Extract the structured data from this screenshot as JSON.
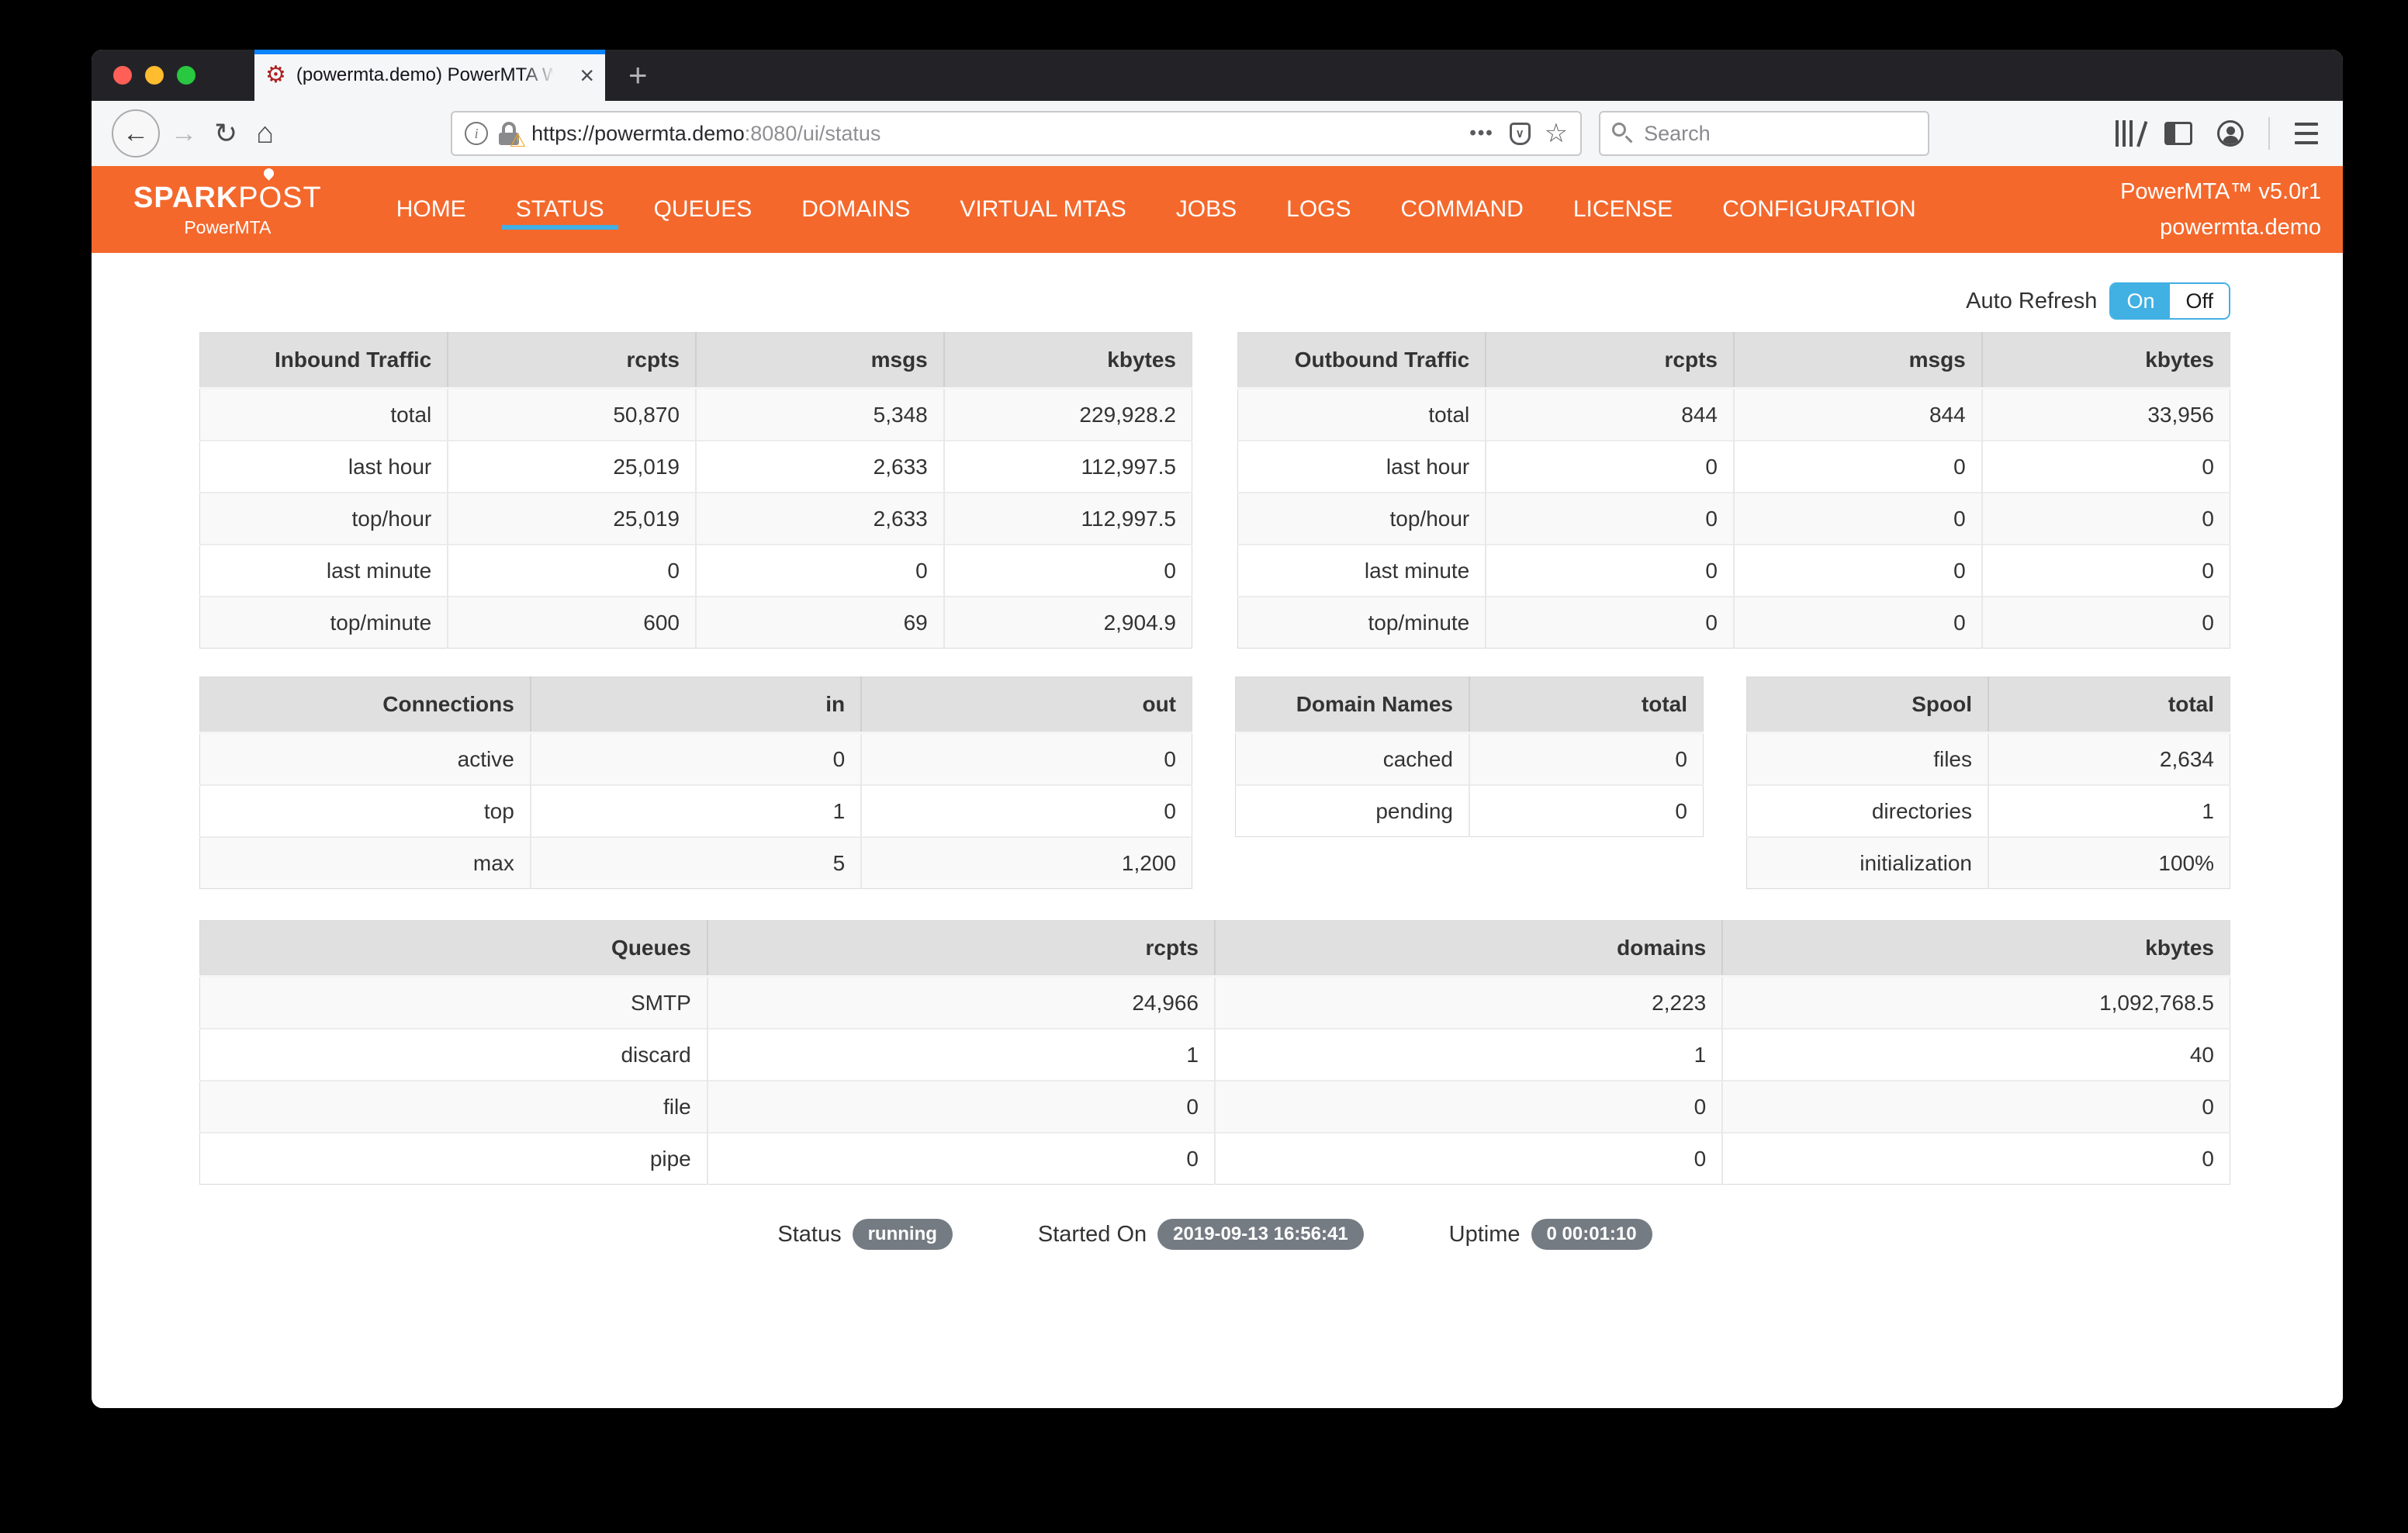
{
  "browser": {
    "tab": {
      "title": "(powermta.demo) PowerMTA W",
      "close_glyph": "×",
      "new_tab_glyph": "+"
    },
    "toolbar": {
      "back_glyph": "←",
      "forward_glyph": "→",
      "reload_glyph": "↻",
      "home_glyph": "⌂",
      "url_scheme_host": "https://powermta.demo",
      "url_rest": ":8080/ui/status",
      "page_actions_glyph": "•••",
      "pocket_glyph": "∨",
      "star_glyph": "☆",
      "lock_warn_glyph": "⚠",
      "info_glyph": "i",
      "search_placeholder": "Search"
    }
  },
  "nav": {
    "brand_prefix": "SPARK",
    "brand_mid": "P",
    "brand_o": "O",
    "brand_suffix": "ST",
    "brand_sub": "PowerMTA",
    "items": [
      {
        "label": "HOME",
        "active": false
      },
      {
        "label": "STATUS",
        "active": true
      },
      {
        "label": "QUEUES",
        "active": false
      },
      {
        "label": "DOMAINS",
        "active": false
      },
      {
        "label": "VIRTUAL MTAS",
        "active": false
      },
      {
        "label": "JOBS",
        "active": false
      },
      {
        "label": "LOGS",
        "active": false
      },
      {
        "label": "COMMAND",
        "active": false
      },
      {
        "label": "LICENSE",
        "active": false
      },
      {
        "label": "CONFIGURATION",
        "active": false
      }
    ],
    "version": "PowerMTA™ v5.0r1",
    "host": "powermta.demo"
  },
  "auto_refresh": {
    "label": "Auto Refresh",
    "on_label": "On",
    "off_label": "Off",
    "state": "On"
  },
  "tables": {
    "inbound": {
      "title": "Inbound Traffic",
      "columns": [
        "rcpts",
        "msgs",
        "kbytes"
      ],
      "rows": [
        [
          "total",
          "50,870",
          "5,348",
          "229,928.2"
        ],
        [
          "last hour",
          "25,019",
          "2,633",
          "112,997.5"
        ],
        [
          "top/hour",
          "25,019",
          "2,633",
          "112,997.5"
        ],
        [
          "last minute",
          "0",
          "0",
          "0"
        ],
        [
          "top/minute",
          "600",
          "69",
          "2,904.9"
        ]
      ]
    },
    "outbound": {
      "title": "Outbound Traffic",
      "columns": [
        "rcpts",
        "msgs",
        "kbytes"
      ],
      "rows": [
        [
          "total",
          "844",
          "844",
          "33,956"
        ],
        [
          "last hour",
          "0",
          "0",
          "0"
        ],
        [
          "top/hour",
          "0",
          "0",
          "0"
        ],
        [
          "last minute",
          "0",
          "0",
          "0"
        ],
        [
          "top/minute",
          "0",
          "0",
          "0"
        ]
      ]
    },
    "connections": {
      "title": "Connections",
      "columns": [
        "in",
        "out"
      ],
      "rows": [
        [
          "active",
          "0",
          "0"
        ],
        [
          "top",
          "1",
          "0"
        ],
        [
          "max",
          "5",
          "1,200"
        ]
      ]
    },
    "domain_names": {
      "title": "Domain Names",
      "columns": [
        "total"
      ],
      "rows": [
        [
          "cached",
          "0"
        ],
        [
          "pending",
          "0"
        ]
      ]
    },
    "spool": {
      "title": "Spool",
      "columns": [
        "total"
      ],
      "rows": [
        [
          "files",
          "2,634"
        ],
        [
          "directories",
          "1"
        ],
        [
          "initialization",
          "100%"
        ]
      ]
    },
    "queues": {
      "title": "Queues",
      "columns": [
        "rcpts",
        "domains",
        "kbytes"
      ],
      "rows": [
        [
          "SMTP",
          "24,966",
          "2,223",
          "1,092,768.5"
        ],
        [
          "discard",
          "1",
          "1",
          "40"
        ],
        [
          "file",
          "0",
          "0",
          "0"
        ],
        [
          "pipe",
          "0",
          "0",
          "0"
        ]
      ]
    }
  },
  "status_bar": {
    "items": [
      {
        "label": "Status",
        "value": "running"
      },
      {
        "label": "Started On",
        "value": "2019-09-13 16:56:41"
      },
      {
        "label": "Uptime",
        "value": "0 00:01:10"
      }
    ]
  },
  "colors": {
    "nav_orange": "#f4682c",
    "accent_blue": "#41b0e3",
    "tab_accent_blue": "#0a84ff",
    "badge_grey": "#747b82",
    "table_header_grey": "#e0e0e0",
    "row_stripe": "#f9f9f9"
  }
}
